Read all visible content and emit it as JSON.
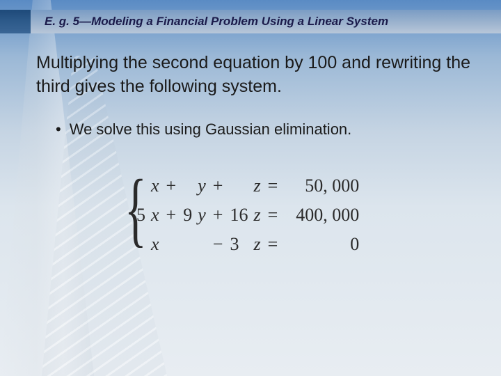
{
  "title": "E. g. 5—Modeling a Financial Problem Using a Linear System",
  "body": "Multiplying the second equation by 100 and rewriting the third gives the following system.",
  "bullet": "We solve this using Gaussian elimination.",
  "equations": {
    "rows": [
      {
        "c1": "",
        "v1": "x",
        "op1": "+",
        "c2": "",
        "v2": "y",
        "op2": "+",
        "c3": "",
        "v3": "z",
        "eq": "=",
        "rhs": "50, 000"
      },
      {
        "c1": "5",
        "v1": "x",
        "op1": "+",
        "c2": "9",
        "v2": "y",
        "op2": "+",
        "c3": "16",
        "v3": "z",
        "eq": "=",
        "rhs": "400, 000"
      },
      {
        "c1": "",
        "v1": "x",
        "op1": "",
        "c2": "",
        "v2": "",
        "op2": "−",
        "c3": "3",
        "v3": "z",
        "eq": "=",
        "rhs": "0"
      }
    ]
  },
  "colors": {
    "title_text": "#1a1a4a",
    "body_text": "#1a1a1a",
    "accent_dark": "#1e4a7a"
  }
}
